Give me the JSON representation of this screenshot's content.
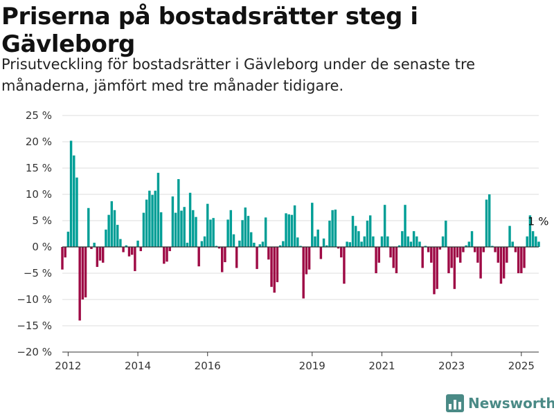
{
  "title": "Priserna på bostadsrätter steg i Gävleborg",
  "subtitle": "Prisutveckling för bostadsrätter i Gävleborg under de senaste tre månaderna, jämfört med tre månader tidigare.",
  "brand": {
    "name": "Newsworthy",
    "icon": "newsworthy-logo-icon"
  },
  "colors": {
    "positive": "#009e96",
    "negative": "#9e0a45",
    "grid": "#dddddd",
    "zero_line": "#333333"
  },
  "chart_data": {
    "type": "bar",
    "title": "",
    "xlabel": "",
    "ylabel": "",
    "ylim": [
      -20,
      25
    ],
    "yticks": [
      25,
      20,
      15,
      10,
      5,
      0,
      -5,
      -10,
      -15,
      -20
    ],
    "ytick_labels": [
      "25 %",
      "20 %",
      "15 %",
      "10 %",
      "5 %",
      "0 %",
      "−5 %",
      "−10 %",
      "−15 %",
      "−20 %"
    ],
    "xticks": [
      2012,
      2014,
      2016,
      2019,
      2021,
      2023,
      2025
    ],
    "xtick_labels": [
      "2012",
      "2014",
      "2016",
      "2019",
      "2021",
      "2023",
      "2025"
    ],
    "x_start": "2011-11",
    "x_end": "2025-07",
    "grid": true,
    "annotation": {
      "text": "1 %",
      "value": 1
    },
    "values": [
      -4.3,
      -2.0,
      2.9,
      20.2,
      17.4,
      13.2,
      -14.0,
      -10.0,
      -9.6,
      7.4,
      -0.4,
      0.8,
      -3.8,
      -2.6,
      -3.0,
      3.3,
      6.1,
      8.7,
      7.0,
      4.2,
      1.5,
      -1.0,
      0.3,
      -1.8,
      -1.5,
      -4.6,
      1.2,
      -0.8,
      6.5,
      9.0,
      10.7,
      9.9,
      10.7,
      14.1,
      6.6,
      -3.2,
      -2.8,
      -0.8,
      9.6,
      6.5,
      12.9,
      6.9,
      7.6,
      0.8,
      10.3,
      7.0,
      5.7,
      -3.7,
      1.1,
      2.0,
      8.2,
      5.2,
      5.5,
      0.2,
      -0.3,
      -4.8,
      -2.9,
      5.2,
      7.0,
      2.4,
      -4.0,
      1.2,
      5.1,
      7.5,
      5.9,
      2.8,
      0.8,
      -4.2,
      0.5,
      1.0,
      5.6,
      -2.4,
      -7.6,
      -8.7,
      -6.7,
      0.3,
      1.1,
      6.4,
      6.2,
      6.1,
      7.9,
      1.8,
      0.2,
      -9.8,
      -5.2,
      -4.3,
      8.4,
      2.0,
      3.3,
      -2.3,
      1.6,
      0.3,
      5.0,
      7.0,
      7.1,
      -0.3,
      -2.0,
      -7.0,
      1.0,
      0.9,
      5.9,
      4.0,
      3.0,
      1.0,
      2.0,
      5.0,
      6.0,
      2.0,
      -5.0,
      -3.0,
      2.0,
      8.0,
      2.0,
      -2.0,
      -4.0,
      -5.0,
      0.3,
      3.0,
      8.0,
      2.0,
      1.0,
      3.0,
      2.0,
      1.0,
      -4.0,
      0.2,
      -1.0,
      -3.0,
      -9.0,
      -8.0,
      -0.5,
      2.0,
      5.0,
      -5.0,
      -4.0,
      -8.0,
      -2.0,
      -3.0,
      -1.0,
      0.3,
      1.0,
      3.0,
      -1.0,
      -3.0,
      -6.0,
      -1.0,
      9.0,
      10.0,
      0.2,
      -1.0,
      -3.0,
      -7.0,
      -6.0,
      -3.0,
      4.0,
      1.0,
      -1.0,
      -5.0,
      -5.0,
      -4.0,
      2.0,
      6.0,
      3.0,
      2.0,
      1.0
    ]
  }
}
